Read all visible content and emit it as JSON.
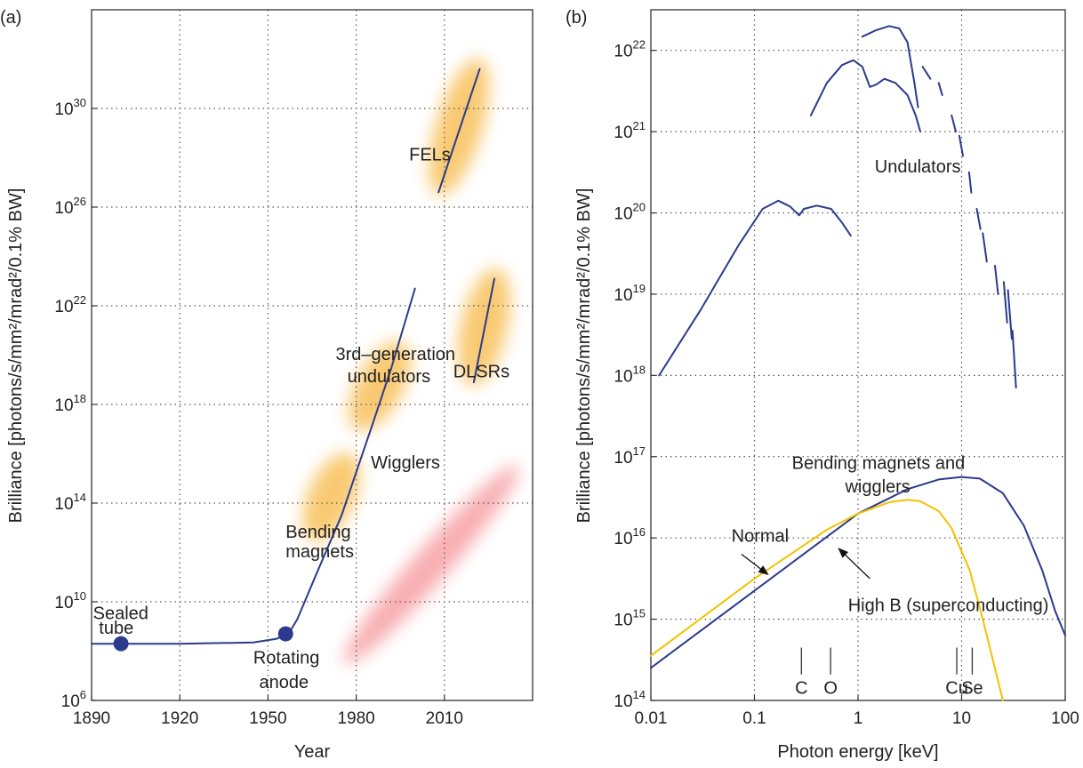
{
  "chart_data": [
    {
      "panel": "(a)",
      "type": "line",
      "xlabel": "Year",
      "ylabel": "Brilliance [photons/s/mm²/mrad²/0.1% BW]",
      "xlim": [
        1890,
        2040
      ],
      "ylim_log10": [
        6,
        34
      ],
      "xticks": [
        {
          "value": 1890,
          "label": "1890"
        },
        {
          "value": 1920,
          "label": "1920"
        },
        {
          "value": 1950,
          "label": "1950"
        },
        {
          "value": 1980,
          "label": "1980"
        },
        {
          "value": 2010,
          "label": "2010"
        }
      ],
      "yticks": [
        {
          "exp": 6,
          "base": "10",
          "sup": "6"
        },
        {
          "exp": 10,
          "base": "10",
          "sup": "10"
        },
        {
          "exp": 14,
          "base": "10",
          "sup": "14"
        },
        {
          "exp": 18,
          "base": "10",
          "sup": "18"
        },
        {
          "exp": 22,
          "base": "10",
          "sup": "22"
        },
        {
          "exp": 26,
          "base": "10",
          "sup": "26"
        },
        {
          "exp": 30,
          "base": "10",
          "sup": "30"
        }
      ],
      "grid": true,
      "series": [
        {
          "color": "#2b3a8c",
          "points": [
            [
              1890,
              8.3
            ],
            [
              1920,
              8.3
            ],
            [
              1945,
              8.35
            ],
            [
              1953,
              8.5
            ],
            [
              1957,
              8.7
            ],
            [
              1960,
              9.3
            ],
            [
              1966,
              11.0
            ],
            [
              1975,
              13.5
            ],
            [
              1985,
              17.0
            ],
            [
              1992,
              19.5
            ],
            [
              2000,
              22.7
            ]
          ]
        },
        {
          "color": "#2b3a8c",
          "points": [
            [
              2008,
              26.6
            ],
            [
              2022,
              31.6
            ]
          ]
        },
        {
          "color": "#2b3a8c",
          "points": [
            [
              2020,
              18.9
            ],
            [
              2027,
              23.1
            ]
          ]
        }
      ],
      "markers": [
        {
          "label": "Sealed tube",
          "x": 1900,
          "y": 8.3
        },
        {
          "label": "Rotating anode",
          "x": 1956,
          "y": 8.7
        }
      ],
      "glow_regions": [
        {
          "kind": "orange",
          "x": [
            1965,
            1978
          ],
          "y": [
            12.5,
            16
          ]
        },
        {
          "kind": "orange",
          "x": [
            1980,
            1996
          ],
          "y": [
            17,
            20.5
          ]
        },
        {
          "kind": "orange",
          "x": [
            2008,
            2022
          ],
          "y": [
            26.5,
            32
          ]
        },
        {
          "kind": "orange",
          "x": [
            2019,
            2028
          ],
          "y": [
            18.8,
            23.5
          ]
        },
        {
          "kind": "red",
          "x": [
            1976,
            2035
          ],
          "y": [
            7.5,
            15.5
          ]
        }
      ],
      "annotations": [
        {
          "text": "Sealed",
          "x": 1890.5,
          "y": 9.3
        },
        {
          "text": "tube",
          "x": 1892.5,
          "y": 8.7
        },
        {
          "text": "Rotating",
          "x": 1945,
          "y": 7.5
        },
        {
          "text": "anode",
          "x": 1947,
          "y": 6.5
        },
        {
          "text": "Bending",
          "x": 1956,
          "y": 12.6
        },
        {
          "text": "magnets",
          "x": 1956,
          "y": 11.8
        },
        {
          "text": "Wigglers",
          "x": 1985,
          "y": 15.4
        },
        {
          "text": "3rd–generation",
          "x": 1973,
          "y": 19.8
        },
        {
          "text": "undulators",
          "x": 1977,
          "y": 18.9
        },
        {
          "text": "FELs",
          "x": 1998,
          "y": 27.9
        },
        {
          "text": "DLSRs",
          "x": 2013,
          "y": 19.1
        }
      ]
    },
    {
      "panel": "(b)",
      "type": "line",
      "xlabel": "Photon energy [keV]",
      "ylabel": "Brilliance [photons/s/mm²/mrad²/0.1% BW]",
      "xscale": "log",
      "xlim": [
        0.01,
        100
      ],
      "ylim_log10": [
        14,
        22.5
      ],
      "xticks": [
        {
          "value": 0.01,
          "label": "0.01"
        },
        {
          "value": 0.1,
          "label": "0.1"
        },
        {
          "value": 1,
          "label": "1"
        },
        {
          "value": 10,
          "label": "10"
        },
        {
          "value": 100,
          "label": "100"
        }
      ],
      "yticks": [
        {
          "exp": 14,
          "base": "10",
          "sup": "14"
        },
        {
          "exp": 15,
          "base": "10",
          "sup": "15"
        },
        {
          "exp": 16,
          "base": "10",
          "sup": "16"
        },
        {
          "exp": 17,
          "base": "10",
          "sup": "17"
        },
        {
          "exp": 18,
          "base": "10",
          "sup": "18"
        },
        {
          "exp": 19,
          "base": "10",
          "sup": "19"
        },
        {
          "exp": 20,
          "base": "10",
          "sup": "20"
        },
        {
          "exp": 21,
          "base": "10",
          "sup": "21"
        },
        {
          "exp": 22,
          "base": "10",
          "sup": "22"
        }
      ],
      "grid": true,
      "series": [
        {
          "color": "#2b3a8c",
          "points": [
            [
              0.012,
              18.0
            ],
            [
              0.03,
              18.8
            ],
            [
              0.07,
              19.6
            ],
            [
              0.12,
              20.05
            ],
            [
              0.17,
              20.15
            ],
            [
              0.22,
              20.08
            ],
            [
              0.27,
              19.97
            ],
            [
              0.3,
              20.05
            ],
            [
              0.4,
              20.09
            ],
            [
              0.55,
              20.05
            ],
            [
              0.7,
              19.88
            ],
            [
              0.85,
              19.72
            ]
          ]
        },
        {
          "color": "#2b3a8c",
          "points": [
            [
              0.35,
              21.2
            ],
            [
              0.5,
              21.6
            ],
            [
              0.7,
              21.82
            ],
            [
              0.9,
              21.88
            ],
            [
              1.1,
              21.8
            ],
            [
              1.3,
              21.55
            ],
            [
              1.5,
              21.58
            ],
            [
              1.8,
              21.65
            ],
            [
              2.3,
              21.6
            ],
            [
              3.0,
              21.45
            ],
            [
              3.6,
              21.2
            ],
            [
              4.0,
              21.0
            ]
          ]
        },
        {
          "color": "#2b3a8c",
          "points": [
            [
              1.1,
              22.17
            ],
            [
              1.5,
              22.25
            ],
            [
              2.0,
              22.3
            ],
            [
              2.5,
              22.27
            ],
            [
              3.0,
              22.1
            ],
            [
              3.5,
              21.6
            ],
            [
              3.8,
              21.3
            ]
          ]
        },
        {
          "color": "#2b3a8c",
          "points": [
            [
              4.2,
              21.8
            ],
            [
              5.0,
              21.65
            ]
          ]
        },
        {
          "color": "#2b3a8c",
          "points": [
            [
              6.0,
              21.6
            ],
            [
              6.5,
              21.45
            ]
          ]
        },
        {
          "color": "#2b3a8c",
          "points": [
            [
              8.0,
              21.2
            ],
            [
              8.8,
              21.0
            ]
          ]
        },
        {
          "color": "#2b3a8c",
          "points": [
            [
              9.5,
              20.95
            ],
            [
              10.3,
              20.7
            ]
          ]
        },
        {
          "color": "#2b3a8c",
          "points": [
            [
              11.8,
              20.5
            ],
            [
              12.4,
              20.25
            ]
          ]
        },
        {
          "color": "#2b3a8c",
          "points": [
            [
              14.0,
              20.05
            ],
            [
              15.2,
              19.8
            ]
          ]
        },
        {
          "color": "#2b3a8c",
          "points": [
            [
              16.0,
              19.75
            ],
            [
              17.5,
              19.4
            ]
          ]
        },
        {
          "color": "#2b3a8c",
          "points": [
            [
              21.0,
              19.35
            ],
            [
              22.5,
              19.0
            ]
          ]
        },
        {
          "color": "#2b3a8c",
          "points": [
            [
              25.5,
              19.15
            ],
            [
              27.5,
              18.65
            ]
          ]
        },
        {
          "color": "#2b3a8c",
          "points": [
            [
              28.0,
              19.05
            ],
            [
              30.5,
              18.45
            ]
          ]
        },
        {
          "color": "#2b3a8c",
          "points": [
            [
              31.0,
              18.55
            ],
            [
              33.5,
              17.85
            ]
          ]
        },
        {
          "color": "#2b3a8c",
          "points": [
            [
              0.01,
              14.4
            ],
            [
              0.1,
              15.35
            ],
            [
              1,
              16.3
            ],
            [
              3,
              16.6
            ],
            [
              6,
              16.72
            ],
            [
              10,
              16.75
            ],
            [
              15,
              16.73
            ],
            [
              25,
              16.55
            ],
            [
              40,
              16.15
            ],
            [
              60,
              15.6
            ],
            [
              80,
              15.1
            ],
            [
              100,
              14.8
            ]
          ]
        },
        {
          "color": "#f2c200",
          "points": [
            [
              0.01,
              14.55
            ],
            [
              0.1,
              15.5
            ],
            [
              0.5,
              16.1
            ],
            [
              1,
              16.3
            ],
            [
              2,
              16.44
            ],
            [
              3,
              16.47
            ],
            [
              4,
              16.45
            ],
            [
              6,
              16.33
            ],
            [
              8,
              16.12
            ],
            [
              12,
              15.6
            ],
            [
              16,
              15.0
            ],
            [
              20,
              14.5
            ],
            [
              25,
              14.0
            ]
          ]
        }
      ],
      "element_marks": [
        {
          "label": "C",
          "x": 0.284
        },
        {
          "label": "O",
          "x": 0.543
        },
        {
          "label": "Cu",
          "x": 8.98
        },
        {
          "label": "Se",
          "x": 12.66
        }
      ],
      "annotations": [
        {
          "text": "Undulators",
          "x": 1.45,
          "y": 20.5
        },
        {
          "text": "Bending magnets and",
          "x": 0.23,
          "y": 16.85
        },
        {
          "text": "wigglers",
          "x": 0.75,
          "y": 16.56
        },
        {
          "text": "Normal",
          "x": 0.06,
          "y": 15.95
        },
        {
          "text": "High B (superconducting)",
          "x": 0.8,
          "y": 15.1
        }
      ],
      "arrows": [
        {
          "from": [
            0.075,
            15.8
          ],
          "to": [
            0.135,
            15.55
          ]
        },
        {
          "from": [
            1.3,
            15.5
          ],
          "to": [
            0.65,
            15.87
          ]
        }
      ]
    }
  ]
}
